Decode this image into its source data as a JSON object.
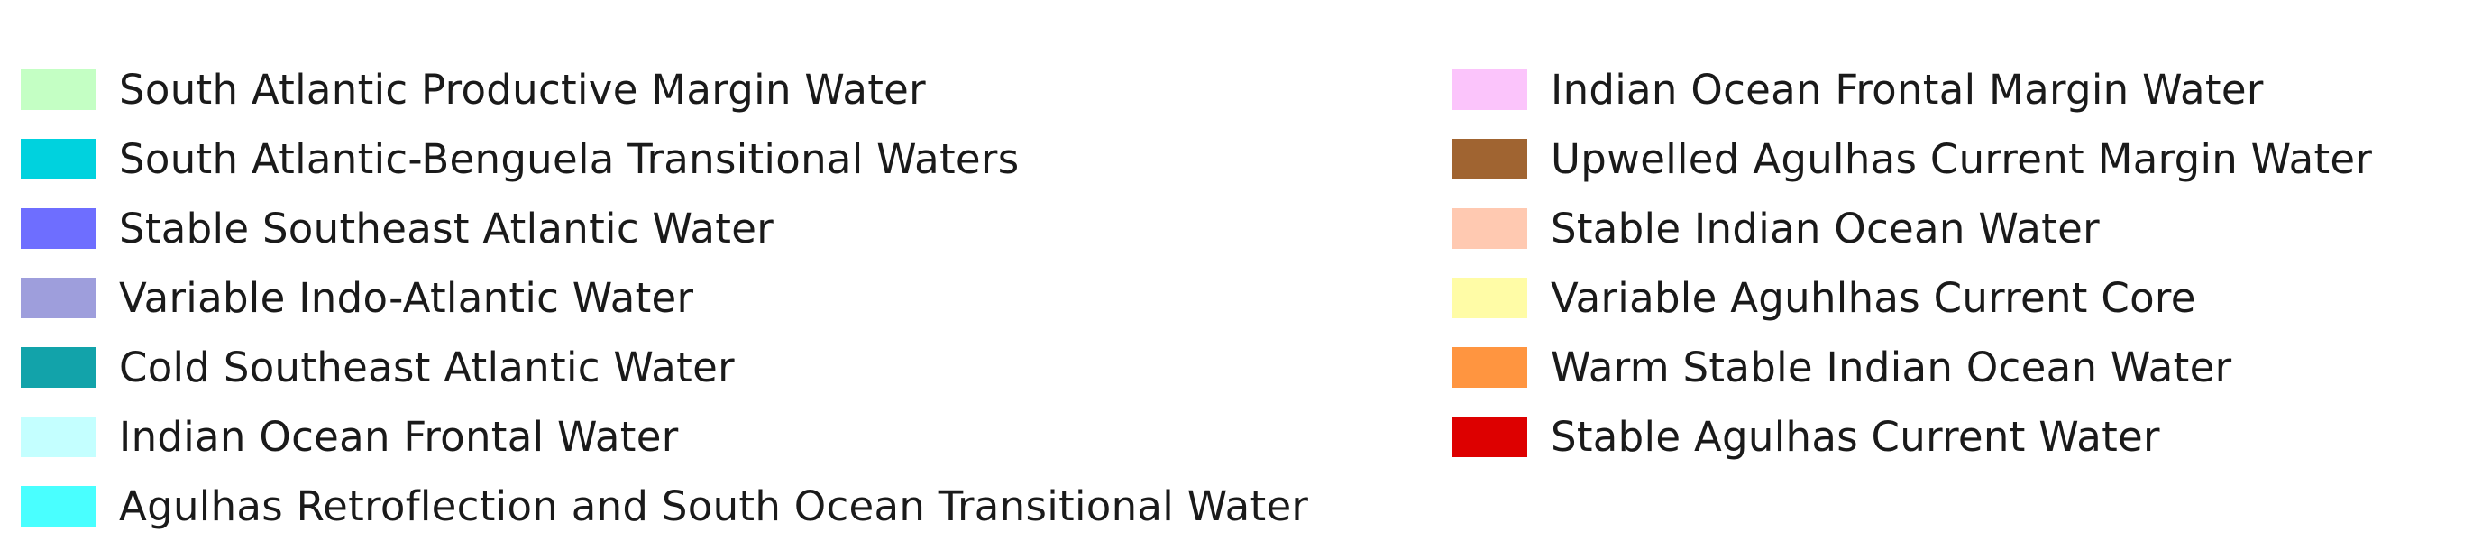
{
  "legend": {
    "left_items": [
      {
        "label": "South Atlantic Productive Margin Water",
        "color": "#c4ffc4"
      },
      {
        "label": "South Atlantic-Benguela Transitional Waters",
        "color": "#00d2de"
      },
      {
        "label": "Stable Southeast Atlantic Water",
        "color": "#6e6eff"
      },
      {
        "label": "Variable Indo-Atlantic Water",
        "color": "#9e9edc"
      },
      {
        "label": "Cold Southeast Atlantic Water",
        "color": "#12a3aa"
      },
      {
        "label": "Indian Ocean Frontal Water",
        "color": "#c4ffff"
      },
      {
        "label": "Agulhas Retroflection and South Ocean Transitional Water",
        "color": "#49ffff"
      }
    ],
    "right_items": [
      {
        "label": "Indian Ocean Frontal Margin Water",
        "color": "#fbc4fb"
      },
      {
        "label": "Upwelled Agulhas Current Margin Water",
        "color": "#a06431"
      },
      {
        "label": "Stable Indian Ocean Water",
        "color": "#ffc9b1"
      },
      {
        "label": "Variable Aguhlhas Current Core",
        "color": "#fffca6"
      },
      {
        "label": "Warm Stable Indian Ocean Water",
        "color": "#ff9540"
      },
      {
        "label": "Stable Agulhas Current Water",
        "color": "#dd0000"
      }
    ]
  }
}
